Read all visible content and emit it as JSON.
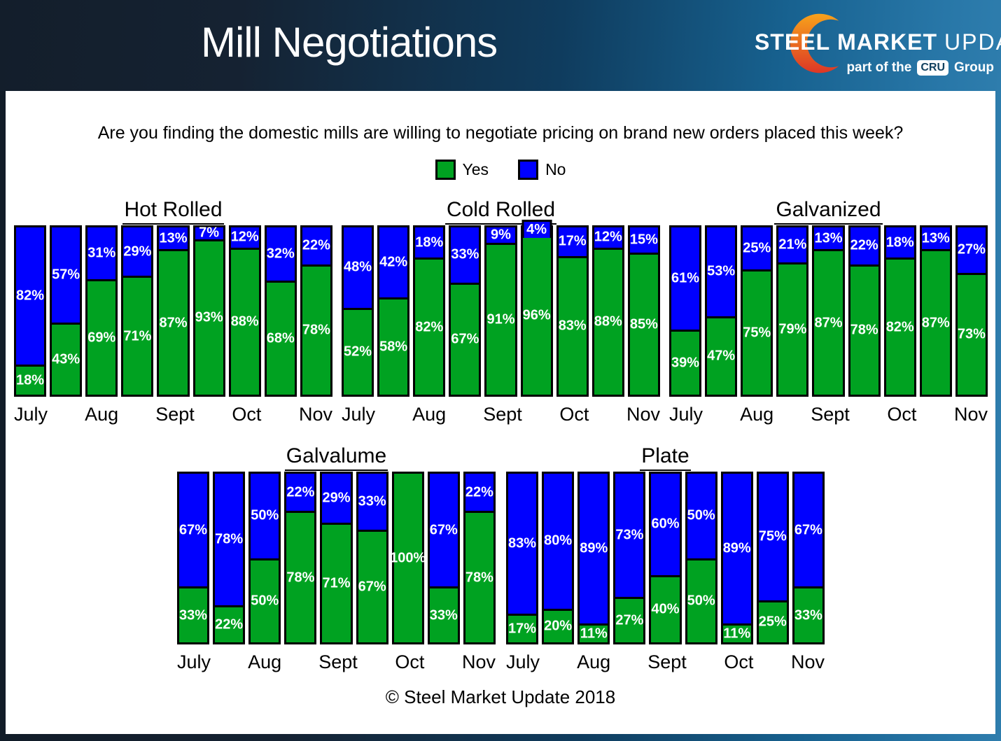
{
  "header": {
    "title": "Mill Negotiations",
    "logo": {
      "steel": "STEEL",
      "market": "MARKET",
      "update": "UPDATE",
      "tagline_prefix": "part of the",
      "cru": "CRU",
      "group": "Group"
    }
  },
  "question": "Are you finding the domestic mills are willing to negotiate pricing on brand new orders placed this week?",
  "legend": {
    "yes_label": "Yes",
    "no_label": "No"
  },
  "colors": {
    "yes": "#00A221",
    "no": "#0000FF",
    "logo_orange": "#F7A21B",
    "logo_red": "#DD3726"
  },
  "footer": "© Steel Market Update 2018",
  "chart_data": [
    {
      "type": "bar",
      "stacked": true,
      "title": "Hot Rolled",
      "ylim": [
        0,
        100
      ],
      "value_suffix": "%",
      "categories": [
        "July",
        "",
        "Aug",
        "",
        "Sept",
        "",
        "Oct",
        "",
        "Nov"
      ],
      "series": [
        {
          "name": "Yes",
          "values": [
            18,
            43,
            69,
            71,
            87,
            93,
            88,
            68,
            78
          ]
        },
        {
          "name": "No",
          "values": [
            82,
            57,
            31,
            29,
            13,
            7,
            12,
            32,
            22
          ]
        }
      ]
    },
    {
      "type": "bar",
      "stacked": true,
      "title": "Cold Rolled",
      "ylim": [
        0,
        100
      ],
      "value_suffix": "%",
      "categories": [
        "July",
        "",
        "Aug",
        "",
        "Sept",
        "",
        "Oct",
        "",
        "Nov"
      ],
      "series": [
        {
          "name": "Yes",
          "values": [
            52,
            58,
            82,
            67,
            91,
            96,
            83,
            88,
            85
          ]
        },
        {
          "name": "No",
          "values": [
            48,
            42,
            18,
            33,
            9,
            4,
            17,
            12,
            15
          ]
        }
      ]
    },
    {
      "type": "bar",
      "stacked": true,
      "title": "Galvanized",
      "ylim": [
        0,
        100
      ],
      "value_suffix": "%",
      "categories": [
        "July",
        "",
        "Aug",
        "",
        "Sept",
        "",
        "Oct",
        "",
        "Nov"
      ],
      "series": [
        {
          "name": "Yes",
          "values": [
            39,
            47,
            75,
            79,
            87,
            78,
            82,
            87,
            73
          ]
        },
        {
          "name": "No",
          "values": [
            61,
            53,
            25,
            21,
            13,
            22,
            18,
            13,
            27
          ]
        }
      ]
    },
    {
      "type": "bar",
      "stacked": true,
      "title": "Galvalume",
      "ylim": [
        0,
        100
      ],
      "value_suffix": "%",
      "categories": [
        "July",
        "",
        "Aug",
        "",
        "Sept",
        "",
        "Oct",
        "",
        "Nov"
      ],
      "series": [
        {
          "name": "Yes",
          "values": [
            33,
            22,
            50,
            78,
            71,
            67,
            100,
            33,
            78
          ]
        },
        {
          "name": "No",
          "values": [
            67,
            78,
            50,
            22,
            29,
            33,
            0,
            67,
            22
          ]
        }
      ]
    },
    {
      "type": "bar",
      "stacked": true,
      "title": "Plate",
      "ylim": [
        0,
        100
      ],
      "value_suffix": "%",
      "categories": [
        "July",
        "",
        "Aug",
        "",
        "Sept",
        "",
        "Oct",
        "",
        "Nov"
      ],
      "series": [
        {
          "name": "Yes",
          "values": [
            17,
            20,
            11,
            27,
            40,
            50,
            11,
            25,
            33
          ]
        },
        {
          "name": "No",
          "values": [
            83,
            80,
            89,
            73,
            60,
            50,
            89,
            75,
            67
          ]
        }
      ]
    }
  ]
}
